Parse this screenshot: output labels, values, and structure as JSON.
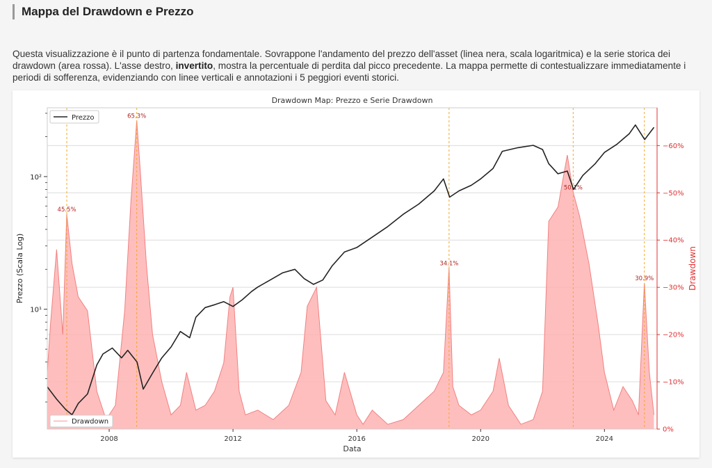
{
  "section": {
    "title": "Mappa del Drawdown e Prezzo",
    "desc_part1": "Questa visualizzazione è il punto di partenza fondamentale. Sovrappone l'andamento del prezzo dell'asset (linea nera, scala logaritmica) e la serie storica dei drawdown (area rossa). L'asse destro, ",
    "desc_bold": "invertito",
    "desc_part2": ", mostra la percentuale di perdita dal picco precedente. La mappa permette di contestualizzare immediatamente i periodi di sofferenza, evidenziando con linee verticali e annotazioni i 5 peggiori eventi storici."
  },
  "colors": {
    "price_line": "#222222",
    "drawdown_fill": "#ffb3b3",
    "drawdown_line": "#f08080",
    "event_line": "#f5a623",
    "annotation": "#b22222",
    "right_axis": "#e03030"
  },
  "chart_data": {
    "type": "line",
    "title": "Drawdown Map: Prezzo e Serie Drawdown",
    "xlabel": "Data",
    "ylabel": "Prezzo (Scala Log)",
    "y2label": "Drawdown",
    "xlim": [
      2006.0,
      2025.7
    ],
    "ylim_log": [
      1.25,
      330
    ],
    "y2lim": [
      0,
      -68
    ],
    "x_ticks": [
      {
        "value": 2008,
        "label": "2008"
      },
      {
        "value": 2012,
        "label": "2012"
      },
      {
        "value": 2016,
        "label": "2016"
      },
      {
        "value": 2020,
        "label": "2020"
      },
      {
        "value": 2024,
        "label": "2024"
      }
    ],
    "y_ticks_major": [
      {
        "value": 10,
        "label": "10¹"
      },
      {
        "value": 100,
        "label": "10²"
      }
    ],
    "y_ticks_minor": [
      2,
      3,
      4,
      5,
      6,
      7,
      8,
      9,
      20,
      30,
      40,
      50,
      60,
      70,
      80,
      90,
      200,
      300
    ],
    "y2_ticks": [
      {
        "value": 0,
        "label": "0%"
      },
      {
        "value": -10,
        "label": "−10%"
      },
      {
        "value": -20,
        "label": "−20%"
      },
      {
        "value": -30,
        "label": "−30%"
      },
      {
        "value": -40,
        "label": "−40%"
      },
      {
        "value": -50,
        "label": "−50%"
      },
      {
        "value": -60,
        "label": "−60%"
      }
    ],
    "legend": {
      "price": "Prezzo",
      "drawdown": "Drawdown"
    },
    "events": [
      {
        "x": 2006.63,
        "depth": -45.5,
        "label": "45.5%"
      },
      {
        "x": 2008.89,
        "depth": -65.3,
        "label": "65.3%"
      },
      {
        "x": 2018.98,
        "depth": -34.1,
        "label": "34.1%"
      },
      {
        "x": 2022.99,
        "depth": -50.1,
        "label": "50.1%"
      },
      {
        "x": 2025.29,
        "depth": -30.9,
        "label": "30.9%"
      }
    ],
    "series": [
      {
        "name": "Prezzo",
        "x": [
          2006.0,
          2006.3,
          2006.6,
          2006.8,
          2007.0,
          2007.3,
          2007.6,
          2007.8,
          2008.1,
          2008.4,
          2008.6,
          2008.9,
          2009.1,
          2009.4,
          2009.7,
          2010.0,
          2010.3,
          2010.6,
          2010.8,
          2011.1,
          2011.4,
          2011.7,
          2012.0,
          2012.3,
          2012.6,
          2012.8,
          2013.2,
          2013.6,
          2014.0,
          2014.3,
          2014.6,
          2014.9,
          2015.2,
          2015.6,
          2016.0,
          2016.5,
          2017.0,
          2017.5,
          2018.0,
          2018.5,
          2018.8,
          2019.0,
          2019.3,
          2019.7,
          2020.0,
          2020.4,
          2020.7,
          2021.2,
          2021.7,
          2022.0,
          2022.2,
          2022.5,
          2022.8,
          2023.0,
          2023.3,
          2023.7,
          2024.0,
          2024.4,
          2024.8,
          2025.0,
          2025.3,
          2025.6
        ],
        "values": [
          2.6,
          2.1,
          1.75,
          1.6,
          1.95,
          2.3,
          3.8,
          4.6,
          5.1,
          4.3,
          4.9,
          4.0,
          2.5,
          3.3,
          4.3,
          5.2,
          6.8,
          6.1,
          8.7,
          10.3,
          10.8,
          11.4,
          10.5,
          11.8,
          13.6,
          14.7,
          16.6,
          18.8,
          20.0,
          17.0,
          15.4,
          16.6,
          21.2,
          27.0,
          29.2,
          35.0,
          42.0,
          52.0,
          62.0,
          78.0,
          96.0,
          70.0,
          78.0,
          86.0,
          96.0,
          115.0,
          155.0,
          165.0,
          172.0,
          160.0,
          125.0,
          105.0,
          110.0,
          80.0,
          102.0,
          125.0,
          152.0,
          175.0,
          210.0,
          245.0,
          190.0,
          235.0
        ]
      },
      {
        "name": "Drawdown",
        "x": [
          2006.0,
          2006.1,
          2006.3,
          2006.5,
          2006.63,
          2006.8,
          2007.0,
          2007.3,
          2007.6,
          2007.9,
          2008.2,
          2008.5,
          2008.7,
          2008.89,
          2009.0,
          2009.2,
          2009.4,
          2009.7,
          2010.0,
          2010.3,
          2010.5,
          2010.8,
          2011.1,
          2011.4,
          2011.7,
          2011.9,
          2012.0,
          2012.2,
          2012.4,
          2012.8,
          2013.3,
          2013.8,
          2014.2,
          2014.4,
          2014.7,
          2015.0,
          2015.3,
          2015.6,
          2016.0,
          2016.2,
          2016.5,
          2017.0,
          2017.5,
          2018.0,
          2018.5,
          2018.8,
          2018.98,
          2019.1,
          2019.3,
          2019.7,
          2020.0,
          2020.4,
          2020.6,
          2020.9,
          2021.3,
          2021.7,
          2022.0,
          2022.2,
          2022.5,
          2022.8,
          2022.99,
          2023.2,
          2023.5,
          2023.8,
          2024.0,
          2024.3,
          2024.6,
          2024.9,
          2025.1,
          2025.29,
          2025.45,
          2025.6
        ],
        "values": [
          -12,
          -22,
          -38,
          -20,
          -45.5,
          -35,
          -28,
          -25,
          -8,
          -2,
          -5,
          -25,
          -48,
          -65.3,
          -55,
          -35,
          -20,
          -10,
          -3,
          -5,
          -12,
          -4,
          -5,
          -8,
          -14,
          -28,
          -30,
          -8,
          -3,
          -4,
          -2,
          -5,
          -12,
          -26,
          -30,
          -6,
          -3,
          -12,
          -3,
          -1,
          -4,
          -1,
          -2,
          -5,
          -8,
          -12,
          -34.1,
          -9,
          -5,
          -3,
          -4,
          -8,
          -15,
          -5,
          -1,
          -2,
          -8,
          -44,
          -47,
          -58,
          -50.1,
          -45,
          -35,
          -22,
          -12,
          -4,
          -9,
          -6,
          -3,
          -30.9,
          -12,
          -3
        ]
      }
    ]
  }
}
